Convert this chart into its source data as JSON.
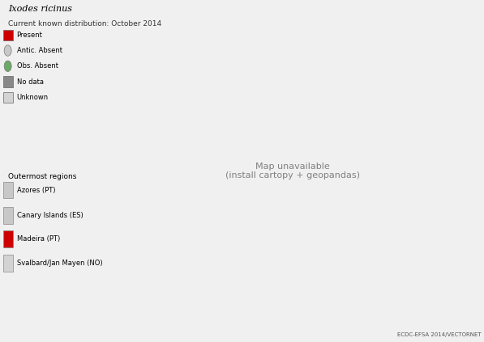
{
  "title": "Ixodes ricinus",
  "subtitle": "Current known distribution: October 2014",
  "background_color": "#f0f0f0",
  "watermark": "ECDC-EFSA 2014/VECTORNET",
  "figsize": [
    5.97,
    4.23
  ],
  "dpi": 100,
  "title_fontsize": 8,
  "subtitle_fontsize": 6.5,
  "legend_fontsize": 6,
  "present_color": "#cc0000",
  "no_data_color": "#999999",
  "unknown_color": "#d3d3d3",
  "land_color": "#d3d3d3",
  "ocean_color": "#dcdcdc",
  "border_color": "#555555",
  "legend_items": [
    {
      "label": "Present",
      "color": "#cc0000",
      "shape": "rect"
    },
    {
      "label": "Antic. Absent",
      "color": "#c8c8c8",
      "shape": "circle"
    },
    {
      "label": "Obs. Absent",
      "color": "#6aaa64",
      "shape": "circle"
    },
    {
      "label": "No data",
      "color": "#888888",
      "shape": "rect"
    },
    {
      "label": "Unknown",
      "color": "#d3d3d3",
      "shape": "rect"
    }
  ],
  "outermost_title": "Outermost regions",
  "outermost_items": [
    {
      "label": "Azores (PT)",
      "color": "#c8c8c8"
    },
    {
      "label": "Canary Islands (ES)",
      "color": "#c8c8c8"
    },
    {
      "label": "Madeira (PT)",
      "color": "#cc0000"
    },
    {
      "label": "Svalbard/Jan Mayen (NO)",
      "color": "#d3d3d3"
    }
  ]
}
